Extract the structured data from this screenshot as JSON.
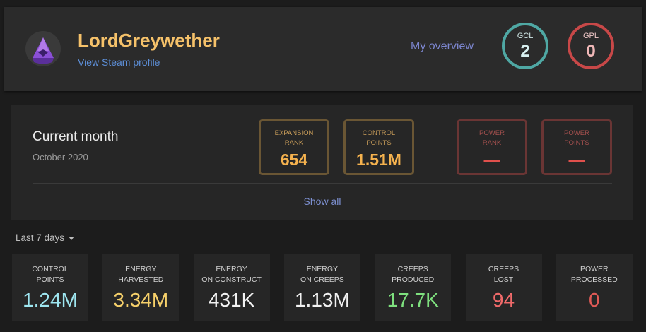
{
  "profile": {
    "username": "LordGreywether",
    "steam_link": "View Steam profile",
    "overview_link": "My overview",
    "gcl": {
      "label": "GCL",
      "value": "2"
    },
    "gpl": {
      "label": "GPL",
      "value": "0"
    }
  },
  "current_month": {
    "title": "Current month",
    "subtitle": "October 2020",
    "stats": [
      {
        "label_1": "EXPANSION",
        "label_2": "RANK",
        "value": "654"
      },
      {
        "label_1": "CONTROL",
        "label_2": "POINTS",
        "value": "1.51M"
      },
      {
        "label_1": "POWER",
        "label_2": "RANK",
        "value": "—"
      },
      {
        "label_1": "POWER",
        "label_2": "POINTS",
        "value": "—"
      }
    ],
    "show_all": "Show all"
  },
  "weekly": {
    "range_label": "Last 7 days",
    "cards": [
      {
        "label_1": "CONTROL",
        "label_2": "POINTS",
        "value": "1.24M",
        "color": "#9ee6f0"
      },
      {
        "label_1": "ENERGY",
        "label_2": "HARVESTED",
        "value": "3.34M",
        "color": "#f6d06a"
      },
      {
        "label_1": "ENERGY",
        "label_2": "ON CONSTRUCT",
        "value": "431K",
        "color": "#f2f2f2"
      },
      {
        "label_1": "ENERGY",
        "label_2": "ON CREEPS",
        "value": "1.13M",
        "color": "#f2f2f2"
      },
      {
        "label_1": "CREEPS",
        "label_2": "PRODUCED",
        "value": "17.7K",
        "color": "#7ee07e"
      },
      {
        "label_1": "CREEPS",
        "label_2": "LOST",
        "value": "94",
        "color": "#f06a6a"
      },
      {
        "label_1": "POWER",
        "label_2": "PROCESSED",
        "value": "0",
        "color": "#e05a56"
      }
    ]
  },
  "colors": {
    "gold_accent": "#f5b24e",
    "red_accent": "#e0504c",
    "gcl_ring": "#4fa8a4",
    "gpl_ring": "#c84848",
    "link": "#5d8fd8"
  }
}
